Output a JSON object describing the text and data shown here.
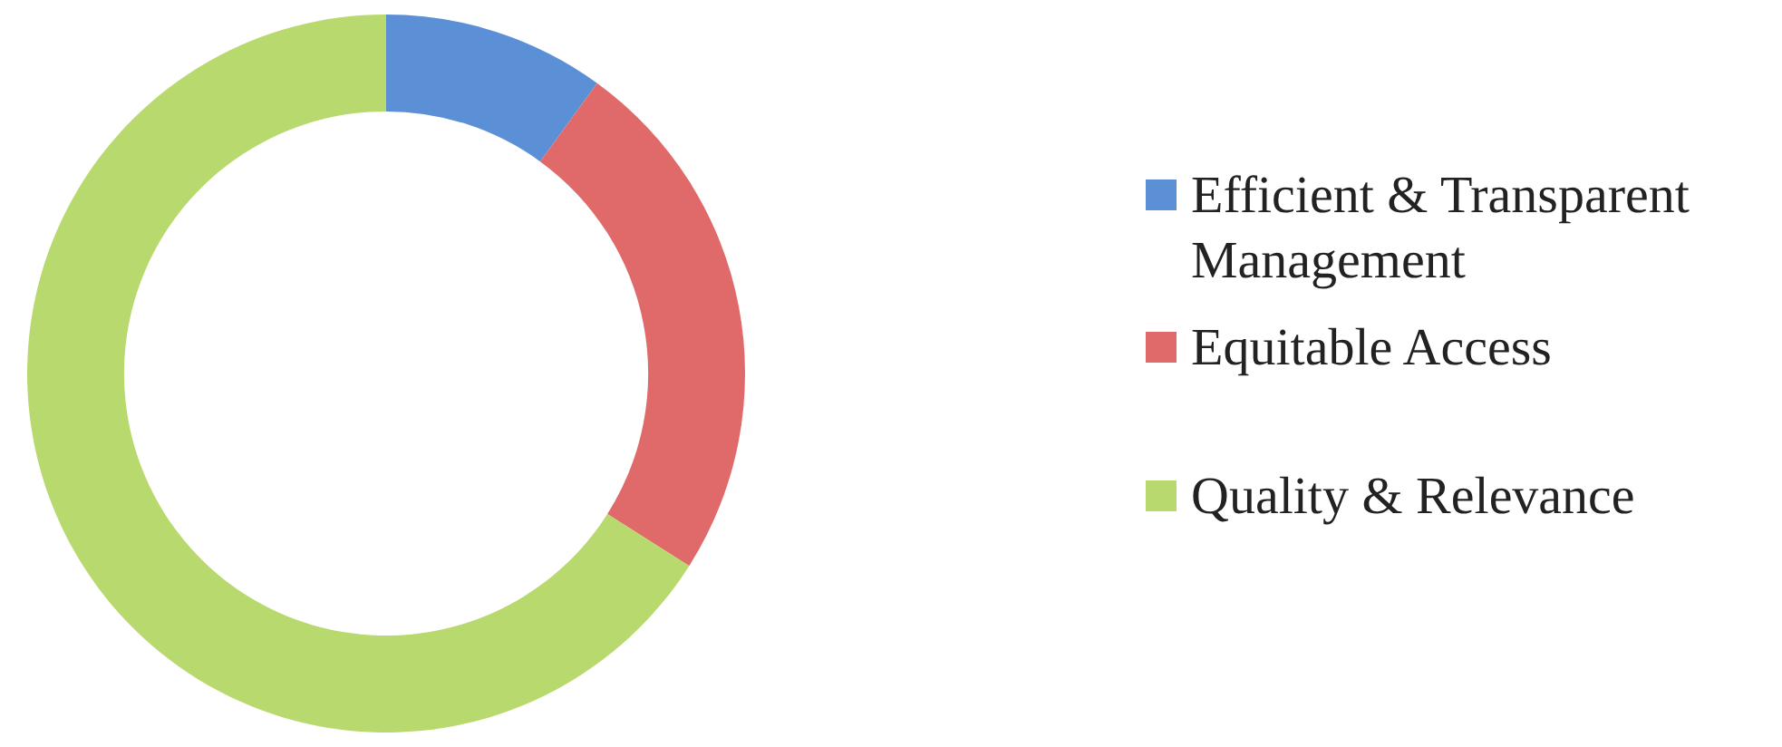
{
  "chart_data": {
    "type": "donut",
    "categories": [
      "Efficient & Transparent Management",
      "Equitable Access",
      "Quality & Relevance"
    ],
    "values": [
      10,
      24,
      66
    ],
    "colors": [
      "#5b8fd6",
      "#e06a6a",
      "#b8d96e"
    ],
    "legend": "right"
  }
}
